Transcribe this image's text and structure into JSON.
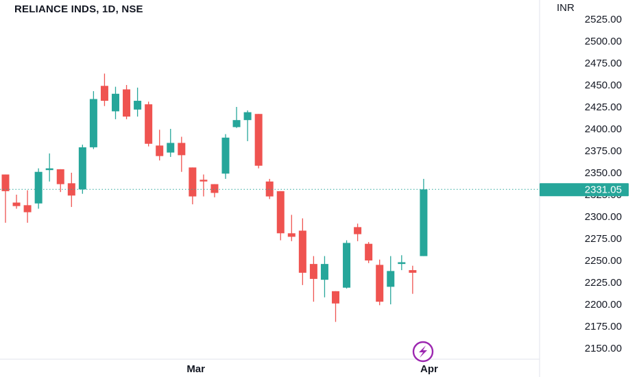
{
  "header": {
    "title": "RELIANCE INDS, 1D, NSE"
  },
  "colors": {
    "up": "#26a69a",
    "down": "#ef5350",
    "last_price": "#26a69a",
    "badge": "#9c27b0"
  },
  "icons": {
    "flash": "lightning-icon"
  },
  "chart_data": {
    "type": "candlestick",
    "title": "RELIANCE INDS, 1D, NSE",
    "currency": "INR",
    "ylim": [
      2140,
      2537
    ],
    "y_ticks": [
      "2525.00",
      "2500.00",
      "2475.00",
      "2450.00",
      "2425.00",
      "2400.00",
      "2375.00",
      "2350.00",
      "2325.00",
      "2300.00",
      "2275.00",
      "2250.00",
      "2225.00",
      "2200.00",
      "2175.00",
      "2150.00"
    ],
    "x_tick_labels": [
      {
        "label": "Mar",
        "index": 17.3
      },
      {
        "label": "Apr",
        "index": 38.5
      }
    ],
    "last_price": "2331.05",
    "grid": false,
    "candles": [
      {
        "o": 2348,
        "h": 2348,
        "l": 2293,
        "c": 2329
      },
      {
        "o": 2316,
        "h": 2325,
        "l": 2309,
        "c": 2312
      },
      {
        "o": 2313,
        "h": 2330,
        "l": 2293,
        "c": 2305
      },
      {
        "o": 2315,
        "h": 2355,
        "l": 2309,
        "c": 2351
      },
      {
        "o": 2353,
        "h": 2372,
        "l": 2340,
        "c": 2355
      },
      {
        "o": 2354,
        "h": 2354,
        "l": 2328,
        "c": 2337
      },
      {
        "o": 2338,
        "h": 2350,
        "l": 2311,
        "c": 2324
      },
      {
        "o": 2331,
        "h": 2382,
        "l": 2326,
        "c": 2379
      },
      {
        "o": 2379,
        "h": 2443,
        "l": 2377,
        "c": 2434
      },
      {
        "o": 2449,
        "h": 2463,
        "l": 2426,
        "c": 2432
      },
      {
        "o": 2420,
        "h": 2448,
        "l": 2411,
        "c": 2440
      },
      {
        "o": 2445,
        "h": 2450,
        "l": 2411,
        "c": 2414
      },
      {
        "o": 2422,
        "h": 2447,
        "l": 2414,
        "c": 2432
      },
      {
        "o": 2428,
        "h": 2431,
        "l": 2380,
        "c": 2383
      },
      {
        "o": 2381,
        "h": 2399,
        "l": 2364,
        "c": 2369
      },
      {
        "o": 2373,
        "h": 2400,
        "l": 2368,
        "c": 2384
      },
      {
        "o": 2384,
        "h": 2391,
        "l": 2351,
        "c": 2370
      },
      {
        "o": 2356,
        "h": 2356,
        "l": 2314,
        "c": 2323
      },
      {
        "o": 2342,
        "h": 2348,
        "l": 2323,
        "c": 2341
      },
      {
        "o": 2337,
        "h": 2337,
        "l": 2322,
        "c": 2327
      },
      {
        "o": 2349,
        "h": 2394,
        "l": 2343,
        "c": 2390
      },
      {
        "o": 2402,
        "h": 2425,
        "l": 2401,
        "c": 2410
      },
      {
        "o": 2410,
        "h": 2421,
        "l": 2386,
        "c": 2419
      },
      {
        "o": 2417,
        "h": 2417,
        "l": 2355,
        "c": 2358
      },
      {
        "o": 2340,
        "h": 2343,
        "l": 2320,
        "c": 2323
      },
      {
        "o": 2329,
        "h": 2329,
        "l": 2273,
        "c": 2281
      },
      {
        "o": 2281,
        "h": 2302,
        "l": 2272,
        "c": 2277
      },
      {
        "o": 2284,
        "h": 2298,
        "l": 2222,
        "c": 2236
      },
      {
        "o": 2246,
        "h": 2255,
        "l": 2203,
        "c": 2229
      },
      {
        "o": 2228,
        "h": 2255,
        "l": 2208,
        "c": 2246
      },
      {
        "o": 2215,
        "h": 2215,
        "l": 2180,
        "c": 2201
      },
      {
        "o": 2219,
        "h": 2273,
        "l": 2218,
        "c": 2270
      },
      {
        "o": 2288,
        "h": 2292,
        "l": 2272,
        "c": 2280
      },
      {
        "o": 2269,
        "h": 2271,
        "l": 2247,
        "c": 2250
      },
      {
        "o": 2245,
        "h": 2251,
        "l": 2199,
        "c": 2203
      },
      {
        "o": 2220,
        "h": 2255,
        "l": 2200,
        "c": 2238
      },
      {
        "o": 2246,
        "h": 2256,
        "l": 2239,
        "c": 2248
      },
      {
        "o": 2239,
        "h": 2244,
        "l": 2212,
        "c": 2236
      },
      {
        "o": 2255,
        "h": 2343,
        "l": 2255,
        "c": 2331
      }
    ]
  }
}
